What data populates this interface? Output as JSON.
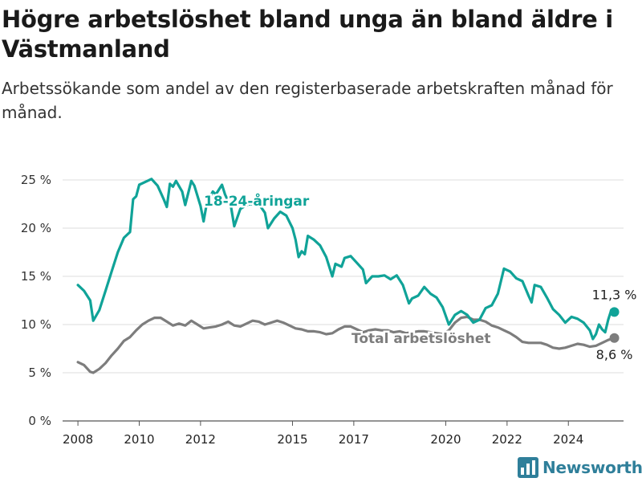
{
  "title": "Högre arbetslöshet bland unga än bland äldre i Västmanland",
  "subtitle": "Arbetssökande som andel av den registerbaserade arbetskraften månad för månad.",
  "logo_text": "Newsworthy",
  "colors": {
    "youth": "#10a398",
    "total": "#7d7d7d",
    "grid": "#dcdcdc",
    "logo": "#2f7f9a"
  },
  "chart_data": {
    "type": "line",
    "title": "",
    "xlabel": "",
    "ylabel": "",
    "xlim": [
      2007.5,
      2025.8
    ],
    "ylim": [
      0,
      25
    ],
    "y_ticks": [
      0,
      5,
      10,
      15,
      20,
      25
    ],
    "y_tick_labels": [
      "0 %",
      "5 %",
      "10 %",
      "15 %",
      "20 %",
      "25 %"
    ],
    "x_ticks": [
      2008,
      2010,
      2012,
      2015,
      2017,
      2020,
      2022,
      2024
    ],
    "x_tick_labels": [
      "2008",
      "2010",
      "2012",
      "2015",
      "2017",
      "2020",
      "2022",
      "2024"
    ],
    "grid": true,
    "series": [
      {
        "name": "18-24-åringar",
        "end_label": "11,3 %",
        "points": [
          [
            2008.0,
            14.1
          ],
          [
            2008.2,
            13.5
          ],
          [
            2008.4,
            12.5
          ],
          [
            2008.5,
            10.4
          ],
          [
            2008.7,
            11.5
          ],
          [
            2008.9,
            13.5
          ],
          [
            2009.1,
            15.5
          ],
          [
            2009.3,
            17.5
          ],
          [
            2009.5,
            19.0
          ],
          [
            2009.7,
            19.6
          ],
          [
            2009.8,
            23.0
          ],
          [
            2009.9,
            23.3
          ],
          [
            2010.0,
            24.5
          ],
          [
            2010.2,
            24.8
          ],
          [
            2010.4,
            25.1
          ],
          [
            2010.6,
            24.4
          ],
          [
            2010.8,
            23.0
          ],
          [
            2010.9,
            22.2
          ],
          [
            2011.0,
            24.6
          ],
          [
            2011.1,
            24.3
          ],
          [
            2011.2,
            24.9
          ],
          [
            2011.4,
            23.8
          ],
          [
            2011.5,
            22.4
          ],
          [
            2011.7,
            24.9
          ],
          [
            2011.8,
            24.4
          ],
          [
            2012.0,
            22.3
          ],
          [
            2012.1,
            20.7
          ],
          [
            2012.2,
            22.5
          ],
          [
            2012.4,
            23.8
          ],
          [
            2012.5,
            23.5
          ],
          [
            2012.7,
            24.5
          ],
          [
            2012.8,
            23.5
          ],
          [
            2013.0,
            22.1
          ],
          [
            2013.1,
            20.2
          ],
          [
            2013.3,
            22.0
          ],
          [
            2013.4,
            22.2
          ],
          [
            2013.6,
            22.5
          ],
          [
            2013.7,
            22.5
          ],
          [
            2013.9,
            22.5
          ],
          [
            2014.1,
            21.6
          ],
          [
            2014.2,
            20.0
          ],
          [
            2014.4,
            21.0
          ],
          [
            2014.6,
            21.7
          ],
          [
            2014.8,
            21.3
          ],
          [
            2015.0,
            20.0
          ],
          [
            2015.1,
            18.8
          ],
          [
            2015.2,
            17.0
          ],
          [
            2015.3,
            17.6
          ],
          [
            2015.4,
            17.3
          ],
          [
            2015.5,
            19.2
          ],
          [
            2015.7,
            18.8
          ],
          [
            2015.9,
            18.2
          ],
          [
            2016.1,
            17.0
          ],
          [
            2016.3,
            15.0
          ],
          [
            2016.4,
            16.3
          ],
          [
            2016.6,
            16.0
          ],
          [
            2016.7,
            16.9
          ],
          [
            2016.9,
            17.1
          ],
          [
            2017.1,
            16.4
          ],
          [
            2017.3,
            15.7
          ],
          [
            2017.4,
            14.3
          ],
          [
            2017.6,
            15.0
          ],
          [
            2017.8,
            15.0
          ],
          [
            2018.0,
            15.1
          ],
          [
            2018.2,
            14.7
          ],
          [
            2018.4,
            15.1
          ],
          [
            2018.6,
            14.1
          ],
          [
            2018.8,
            12.2
          ],
          [
            2018.9,
            12.7
          ],
          [
            2019.1,
            13.0
          ],
          [
            2019.3,
            13.9
          ],
          [
            2019.5,
            13.2
          ],
          [
            2019.7,
            12.8
          ],
          [
            2019.9,
            11.8
          ],
          [
            2020.1,
            10.0
          ],
          [
            2020.3,
            11.0
          ],
          [
            2020.5,
            11.4
          ],
          [
            2020.7,
            11.0
          ],
          [
            2020.9,
            10.2
          ],
          [
            2021.1,
            10.5
          ],
          [
            2021.3,
            11.7
          ],
          [
            2021.5,
            12.0
          ],
          [
            2021.7,
            13.2
          ],
          [
            2021.9,
            15.8
          ],
          [
            2022.1,
            15.5
          ],
          [
            2022.3,
            14.8
          ],
          [
            2022.5,
            14.5
          ],
          [
            2022.7,
            13.0
          ],
          [
            2022.8,
            12.3
          ],
          [
            2022.9,
            14.1
          ],
          [
            2023.1,
            13.9
          ],
          [
            2023.3,
            12.8
          ],
          [
            2023.5,
            11.6
          ],
          [
            2023.7,
            11.0
          ],
          [
            2023.9,
            10.2
          ],
          [
            2024.1,
            10.8
          ],
          [
            2024.3,
            10.6
          ],
          [
            2024.5,
            10.2
          ],
          [
            2024.7,
            9.4
          ],
          [
            2024.8,
            8.5
          ],
          [
            2024.9,
            9.0
          ],
          [
            2025.0,
            10.0
          ],
          [
            2025.1,
            9.5
          ],
          [
            2025.2,
            9.2
          ],
          [
            2025.3,
            10.5
          ],
          [
            2025.4,
            11.5
          ],
          [
            2025.5,
            11.3
          ]
        ]
      },
      {
        "name": "Total arbetslöshet",
        "end_label": "8,6 %",
        "points": [
          [
            2008.0,
            6.1
          ],
          [
            2008.2,
            5.8
          ],
          [
            2008.4,
            5.1
          ],
          [
            2008.5,
            5.0
          ],
          [
            2008.7,
            5.4
          ],
          [
            2008.9,
            6.0
          ],
          [
            2009.1,
            6.8
          ],
          [
            2009.3,
            7.5
          ],
          [
            2009.5,
            8.3
          ],
          [
            2009.7,
            8.7
          ],
          [
            2009.9,
            9.4
          ],
          [
            2010.1,
            10.0
          ],
          [
            2010.3,
            10.4
          ],
          [
            2010.5,
            10.7
          ],
          [
            2010.7,
            10.7
          ],
          [
            2010.9,
            10.3
          ],
          [
            2011.1,
            9.9
          ],
          [
            2011.3,
            10.1
          ],
          [
            2011.5,
            9.9
          ],
          [
            2011.7,
            10.4
          ],
          [
            2011.9,
            10.0
          ],
          [
            2012.1,
            9.6
          ],
          [
            2012.3,
            9.7
          ],
          [
            2012.5,
            9.8
          ],
          [
            2012.7,
            10.0
          ],
          [
            2012.9,
            10.3
          ],
          [
            2013.1,
            9.9
          ],
          [
            2013.3,
            9.8
          ],
          [
            2013.5,
            10.1
          ],
          [
            2013.7,
            10.4
          ],
          [
            2013.9,
            10.3
          ],
          [
            2014.1,
            10.0
          ],
          [
            2014.3,
            10.2
          ],
          [
            2014.5,
            10.4
          ],
          [
            2014.7,
            10.2
          ],
          [
            2014.9,
            9.9
          ],
          [
            2015.1,
            9.6
          ],
          [
            2015.3,
            9.5
          ],
          [
            2015.5,
            9.3
          ],
          [
            2015.7,
            9.3
          ],
          [
            2015.9,
            9.2
          ],
          [
            2016.1,
            9.0
          ],
          [
            2016.3,
            9.1
          ],
          [
            2016.5,
            9.5
          ],
          [
            2016.7,
            9.8
          ],
          [
            2016.9,
            9.8
          ],
          [
            2017.1,
            9.5
          ],
          [
            2017.3,
            9.2
          ],
          [
            2017.5,
            9.4
          ],
          [
            2017.7,
            9.5
          ],
          [
            2017.9,
            9.4
          ],
          [
            2018.1,
            9.4
          ],
          [
            2018.3,
            9.2
          ],
          [
            2018.5,
            9.3
          ],
          [
            2018.7,
            9.1
          ],
          [
            2018.9,
            9.2
          ],
          [
            2019.1,
            9.3
          ],
          [
            2019.3,
            9.3
          ],
          [
            2019.5,
            9.2
          ],
          [
            2019.7,
            9.1
          ],
          [
            2019.9,
            9.0
          ],
          [
            2020.1,
            9.4
          ],
          [
            2020.3,
            10.2
          ],
          [
            2020.5,
            10.7
          ],
          [
            2020.7,
            10.8
          ],
          [
            2020.9,
            10.5
          ],
          [
            2021.1,
            10.5
          ],
          [
            2021.3,
            10.3
          ],
          [
            2021.5,
            9.9
          ],
          [
            2021.7,
            9.7
          ],
          [
            2021.9,
            9.4
          ],
          [
            2022.1,
            9.1
          ],
          [
            2022.3,
            8.7
          ],
          [
            2022.5,
            8.2
          ],
          [
            2022.7,
            8.1
          ],
          [
            2022.9,
            8.1
          ],
          [
            2023.1,
            8.1
          ],
          [
            2023.3,
            7.9
          ],
          [
            2023.5,
            7.6
          ],
          [
            2023.7,
            7.5
          ],
          [
            2023.9,
            7.6
          ],
          [
            2024.1,
            7.8
          ],
          [
            2024.3,
            8.0
          ],
          [
            2024.5,
            7.9
          ],
          [
            2024.7,
            7.7
          ],
          [
            2024.9,
            7.8
          ],
          [
            2025.1,
            8.1
          ],
          [
            2025.3,
            8.4
          ],
          [
            2025.5,
            8.6
          ]
        ]
      }
    ]
  }
}
